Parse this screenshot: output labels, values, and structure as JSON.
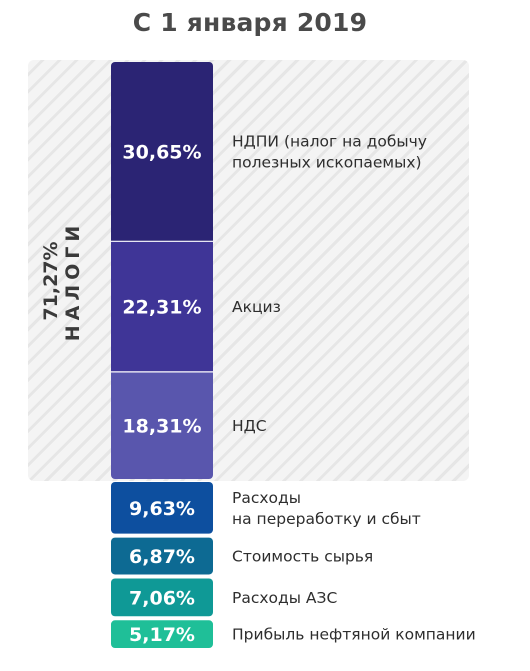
{
  "title": "С 1 января 2019",
  "taxes_group": {
    "percent": "71,27%",
    "label": "НАЛОГИ"
  },
  "chart_data": {
    "type": "bar",
    "stacked": true,
    "title": "С 1 января 2019",
    "unit": "%",
    "categories": [
      "НДПИ (налог на добычу полезных ископаемых)",
      "Акциз",
      "НДС",
      "Расходы на переработку и сбыт",
      "Стоимость сырья",
      "Расходы АЗС",
      "Прибыль нефтяной компании"
    ],
    "values": [
      30.65,
      22.31,
      18.31,
      9.63,
      6.87,
      7.06,
      5.17
    ],
    "segments": [
      {
        "value": 30.65,
        "label": "30,65%",
        "lines": [
          "НДПИ (налог на добычу",
          "полезных ископаемых)"
        ],
        "color": "#2b2474",
        "group": "taxes"
      },
      {
        "value": 22.31,
        "label": "22,31%",
        "lines": [
          "Акциз"
        ],
        "color": "#3f3597",
        "group": "taxes"
      },
      {
        "value": 18.31,
        "label": "18,31%",
        "lines": [
          "НДС"
        ],
        "color": "#5956ad",
        "group": "taxes"
      },
      {
        "value": 9.63,
        "label": "9,63%",
        "lines": [
          "Расходы",
          "на переработку и сбыт"
        ],
        "color": "#0d4f9f",
        "group": "other"
      },
      {
        "value": 6.87,
        "label": "6,87%",
        "lines": [
          "Стоимость сырья"
        ],
        "color": "#0d6a93",
        "group": "other"
      },
      {
        "value": 7.06,
        "label": "7,06%",
        "lines": [
          "Расходы АЗС"
        ],
        "color": "#0f9996",
        "group": "other"
      },
      {
        "value": 5.17,
        "label": "5,17%",
        "lines": [
          "Прибыль нефтяной компании"
        ],
        "color": "#1fbf98",
        "group": "other"
      }
    ],
    "group_total": {
      "name": "НАЛОГИ",
      "value": 71.27,
      "label": "71,27%"
    }
  }
}
